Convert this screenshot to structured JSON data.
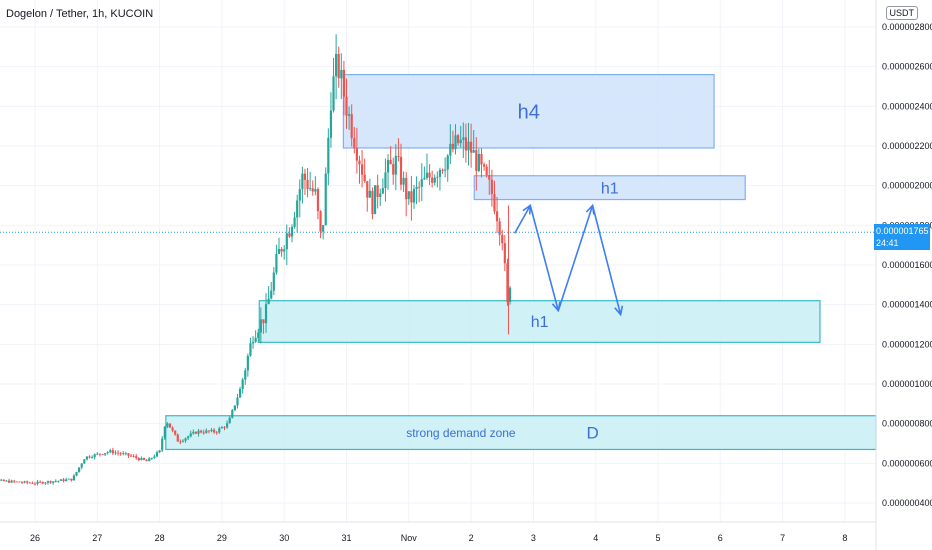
{
  "header": {
    "title": "Dogelon / Tether, 1h, KUCOIN",
    "currency_badge": "USDT"
  },
  "current_price": {
    "value": "0.000001765",
    "countdown": "24:41"
  },
  "chart_data": {
    "type": "candlestick",
    "title": "Dogelon / Tether, 1h, KUCOIN",
    "y_unit": "USDT",
    "ylim": [
      3e-07,
      2.9e-06
    ],
    "y_ticks": [
      "0.000002800",
      "0.000002600",
      "0.000002400",
      "0.000002200",
      "0.000002000",
      "0.000001800",
      "0.000001600",
      "0.000001400",
      "0.000001200",
      "0.000001000",
      "0.000000800",
      "0.000000600",
      "0.000000400"
    ],
    "x_ticks": [
      "26",
      "27",
      "28",
      "29",
      "30",
      "31",
      "Nov",
      "2",
      "3",
      "4",
      "5",
      "6",
      "7",
      "8"
    ],
    "price_path": [
      {
        "t": 25.0,
        "p": 5.2e-07
      },
      {
        "t": 25.5,
        "p": 5.1e-07
      },
      {
        "t": 26.0,
        "p": 5e-07
      },
      {
        "t": 26.6,
        "p": 5.2e-07
      },
      {
        "t": 26.8,
        "p": 6.3e-07
      },
      {
        "t": 27.2,
        "p": 6.6e-07
      },
      {
        "t": 27.5,
        "p": 6.4e-07
      },
      {
        "t": 27.8,
        "p": 6.1e-07
      },
      {
        "t": 28.0,
        "p": 6.6e-07
      },
      {
        "t": 28.1,
        "p": 8.2e-07
      },
      {
        "t": 28.3,
        "p": 7.1e-07
      },
      {
        "t": 28.6,
        "p": 7.6e-07
      },
      {
        "t": 28.9,
        "p": 7.6e-07
      },
      {
        "t": 29.1,
        "p": 8e-07
      },
      {
        "t": 29.3,
        "p": 9.8e-07
      },
      {
        "t": 29.5,
        "p": 1.25e-06
      },
      {
        "t": 29.7,
        "p": 1.35e-06
      },
      {
        "t": 29.9,
        "p": 1.65e-06
      },
      {
        "t": 30.1,
        "p": 1.8e-06
      },
      {
        "t": 30.3,
        "p": 2.05e-06
      },
      {
        "t": 30.5,
        "p": 1.95e-06
      },
      {
        "t": 30.6,
        "p": 1.7e-06
      },
      {
        "t": 30.75,
        "p": 2.45e-06
      },
      {
        "t": 30.85,
        "p": 2.62e-06
      },
      {
        "t": 31.0,
        "p": 2.4e-06
      },
      {
        "t": 31.2,
        "p": 2.15e-06
      },
      {
        "t": 31.4,
        "p": 1.9e-06
      },
      {
        "t": 31.6,
        "p": 2.05e-06
      },
      {
        "t": 31.8,
        "p": 2.12e-06
      },
      {
        "t": 32.0,
        "p": 1.92e-06
      },
      {
        "t": 32.2,
        "p": 2e-06
      },
      {
        "t": 32.5,
        "p": 2.1e-06
      },
      {
        "t": 32.8,
        "p": 2.22e-06
      },
      {
        "t": 33.0,
        "p": 2.18e-06
      },
      {
        "t": 33.2,
        "p": 2.05e-06
      },
      {
        "t": 33.35,
        "p": 1.95e-06
      },
      {
        "t": 33.5,
        "p": 1.75e-06
      },
      {
        "t": 33.6,
        "p": 1.32e-06
      },
      {
        "t": 33.65,
        "p": 1.72e-06
      }
    ],
    "zones": [
      {
        "label": "h4",
        "type": "supply",
        "t_start": 30.95,
        "t_end": 36.9,
        "p_high": 2.56e-06,
        "p_low": 2.19e-06
      },
      {
        "label": "h1",
        "type": "supply",
        "t_start": 33.05,
        "t_end": 37.4,
        "p_high": 2.05e-06,
        "p_low": 1.93e-06
      },
      {
        "label": "h1",
        "type": "demand",
        "t_start": 29.6,
        "t_end": 38.6,
        "p_high": 1.42e-06,
        "p_low": 1.21e-06
      },
      {
        "label": "strong demand zone",
        "tag": "D",
        "type": "demand",
        "t_start": 28.1,
        "t_end": 40.5,
        "p_high": 8.4e-07,
        "p_low": 6.7e-07
      }
    ],
    "projection": [
      {
        "t": 33.7,
        "p": 1.76e-06
      },
      {
        "t": 33.95,
        "p": 1.9e-06
      },
      {
        "t": 34.4,
        "p": 1.37e-06
      },
      {
        "t": 34.95,
        "p": 1.9e-06
      },
      {
        "t": 35.4,
        "p": 1.35e-06
      }
    ],
    "current_price_line": 1.765e-06
  },
  "colors": {
    "up": "#26a69a",
    "down": "#ef5350",
    "grid": "#f0f3fa",
    "supply_fill": "#cfe3fb",
    "supply_edge": "#7fb0f0",
    "demand_fill": "#c8eef5",
    "demand_edge": "#3bb8c7",
    "arrow": "#3d7ef2",
    "label": "#3d6fd8",
    "price_line": "#2196f3"
  }
}
